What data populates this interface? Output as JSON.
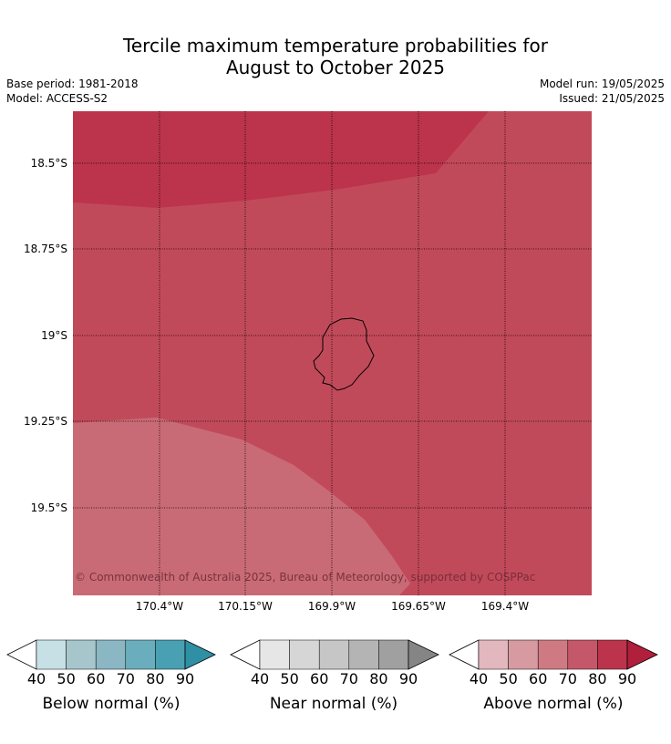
{
  "title": {
    "line1": "Tercile maximum temperature probabilities for",
    "line2": "August to October 2025"
  },
  "meta": {
    "base_period": "Base period: 1981-2018",
    "model": "Model: ACCESS-S2",
    "model_run": "Model run: 19/05/2025",
    "issued": "Issued: 21/05/2025"
  },
  "map": {
    "region_colors": {
      "above_90": "#bb344b",
      "above_80": "#c14a5a",
      "above_70": "#c96b76"
    },
    "lat_ticks": [
      "18.5°S",
      "18.75°S",
      "19°S",
      "19.25°S",
      "19.5°S"
    ],
    "lon_ticks": [
      "170.4°W",
      "170.15°W",
      "169.9°W",
      "169.65°W",
      "169.4°W"
    ],
    "copyright": "© Commonwealth of Australia 2025, Bureau of Meteorology, supported by COSPPac"
  },
  "colorbars": [
    {
      "label": "Below normal (%)",
      "ticks": [
        "40",
        "50",
        "60",
        "70",
        "80",
        "90"
      ],
      "colors": [
        "#c7e0e6",
        "#a6c6cc",
        "#8ab7c3",
        "#6aaebd",
        "#48a0b2",
        "#2f8fa3"
      ]
    },
    {
      "label": "Near normal (%)",
      "ticks": [
        "40",
        "50",
        "60",
        "70",
        "80",
        "90"
      ],
      "colors": [
        "#e6e6e6",
        "#d6d6d6",
        "#c6c6c6",
        "#b4b4b4",
        "#a0a0a0",
        "#858585"
      ]
    },
    {
      "label": "Above normal (%)",
      "ticks": [
        "40",
        "50",
        "60",
        "70",
        "80",
        "90"
      ],
      "colors": [
        "#e2b7bd",
        "#d79aa1",
        "#cf7a83",
        "#c5576a",
        "#bb344b",
        "#b01f3b"
      ]
    }
  ]
}
